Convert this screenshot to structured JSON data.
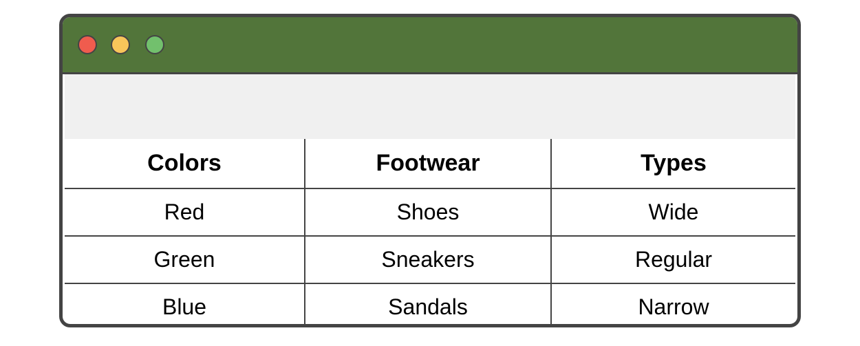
{
  "window": {
    "titlebar_color": "#52753a",
    "buttons": [
      {
        "name": "close",
        "color": "#f05c4e"
      },
      {
        "name": "minimize",
        "color": "#f8c55a"
      },
      {
        "name": "maximize",
        "color": "#72c06d"
      }
    ]
  },
  "table": {
    "headers": [
      "Colors",
      "Footwear",
      "Types"
    ],
    "rows": [
      [
        "Red",
        "Shoes",
        "Wide"
      ],
      [
        "Green",
        "Sneakers",
        "Regular"
      ],
      [
        "Blue",
        "Sandals",
        "Narrow"
      ]
    ]
  }
}
